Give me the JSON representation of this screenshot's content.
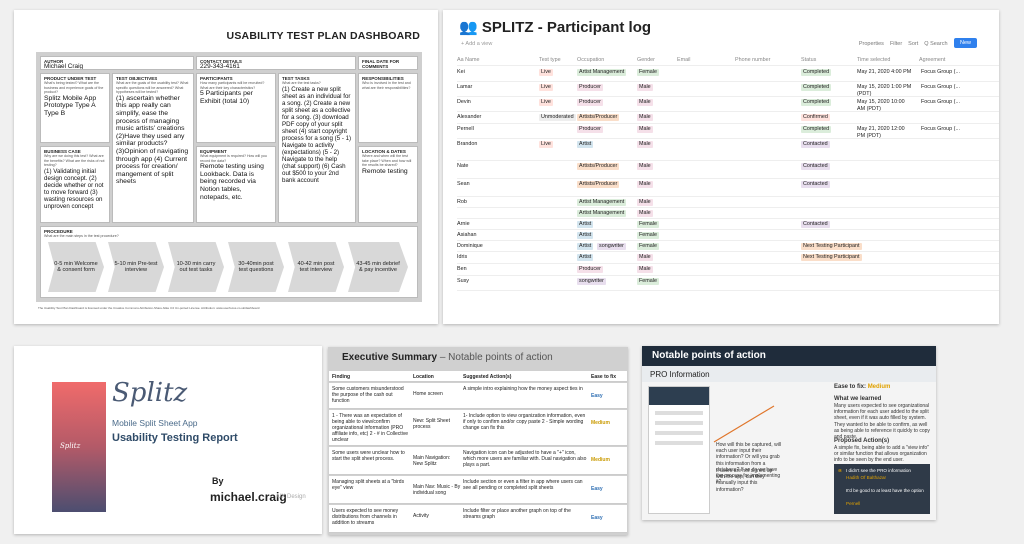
{
  "dashboard": {
    "title": "USABILITY TEST PLAN DASHBOARD",
    "author_label": "AUTHOR",
    "author": "Michael Craig",
    "contact_label": "CONTACT DETAILS",
    "contact": "229-343-4161",
    "final_label": "FINAL DATE FOR COMMENTS",
    "product": {
      "h": "PRODUCT UNDER TEST",
      "q": "What's being tested? What are the business and experience goals of the product?",
      "a": "Splitz Mobile App Prototype Type A Type B"
    },
    "objectives": {
      "h": "TEST OBJECTIVES",
      "q": "What are the goals of the usability test? What specific questions will be answered? What hypotheses will be tested?",
      "a": "(1) ascertain whether this app really can simplify, ease the process of managing music artists' creations (2)Have they used any similar products? (3)Opinion of navigating through app (4) Current process for creation/ mangement of split sheets"
    },
    "participants": {
      "h": "PARTICIPANTS",
      "q": "How many participants will be recruited? What are their key characteristics?",
      "a": "5 Participants per Exhibit (total 10)"
    },
    "tasks": {
      "h": "TEST TASKS",
      "q": "What are the test tasks?",
      "a": "(1) Create a new split sheet as an individual for a song. (2) Create a new split sheet as a collective for a song. (3) download PDF copy of your split sheet (4) start copyright process for a song (5 - 1) Navigate to activity (expectations) (5 - 2) Navigate to the help (chat support) (6) Cash out $500 to your 2nd bank account"
    },
    "responsibilities": {
      "h": "RESPONSIBILITIES",
      "q": "Who is involved in the test and what are their responsibilities?",
      "a": ""
    },
    "business": {
      "h": "BUSINESS CASE",
      "q": "Why are we doing this test? What are the benefits? What are the risks of not testing?",
      "a": "(1) Validating initial design concept. (2) decide whether or not to move forward (3) wasting resources on unproven concept"
    },
    "equipment": {
      "h": "EQUIPMENT",
      "q": "What equipment is required? How will you record the data?",
      "a": "Remote testing using Lookback. Data is being recorded via Notion tables, notepads, etc."
    },
    "location": {
      "h": "LOCATION & DATES",
      "q": "Where and when will the test take place? When and how will the results be shared?",
      "a": "Remote testing"
    },
    "procedure_label": "PROCEDURE",
    "procedure_q": "What are the main steps in the test procedure?",
    "steps": [
      "0-5 min Welcome & consent form",
      "5-10 min Pre-test interview",
      "10-30 min carry out test tasks",
      "30-40min post test questions",
      "40-42 min post test interview",
      "43-45 min debrief & pay incentive"
    ],
    "footer": "The Usability Test Plan Dashboard is licensed under the Creative Commons Attribution-Share Alike 3.0 Un-ported License. Attribution: www.userfocus.co.uk/dashboard"
  },
  "log": {
    "title": "SPLITZ - Participant log",
    "add_view": "+ Add a view",
    "tools": [
      "Properties",
      "Filter",
      "Sort",
      "Q Search",
      "···"
    ],
    "new": "New",
    "columns": [
      "Aa Name",
      "Test type",
      "Occupation",
      "Gender",
      "Email",
      "Phone number",
      "Status",
      "Time selected",
      "Agreement"
    ],
    "rows": [
      {
        "name": "Kei",
        "type": "Live",
        "occ": [
          "Artist Management"
        ],
        "gender": "Female",
        "status": "Completed",
        "time": "May 21, 2020 4:00 PM",
        "agree": "Focus Group (..."
      },
      {
        "name": "Lamar",
        "type": "Live",
        "occ": [
          "Producer"
        ],
        "gender": "Male",
        "status": "Completed",
        "time": "May 15, 2020 1:00 PM (PDT)",
        "agree": "Focus Group (..."
      },
      {
        "name": "Devin",
        "type": "Live",
        "occ": [
          "Producer"
        ],
        "gender": "Male",
        "status": "Completed",
        "time": "May 15, 2020 10:00 AM (PDT)",
        "agree": "Focus Group (..."
      },
      {
        "name": "Alexander",
        "type": "Unmoderated",
        "occ": [
          "Artists/Producer"
        ],
        "gender": "Male",
        "status": "Confirmed",
        "time": "",
        "agree": ""
      },
      {
        "name": "Pernell",
        "type": "",
        "occ": [
          "Producer"
        ],
        "gender": "Male",
        "status": "Completed",
        "time": "May 21, 2020 12:00 PM (PDT)",
        "agree": "Focus Group (..."
      },
      {
        "name": "Brandon",
        "type": "Live",
        "occ": [
          "Artist"
        ],
        "gender": "Male",
        "status": "Contacted",
        "time": "",
        "agree": ""
      },
      {
        "name": "Nate",
        "type": "",
        "occ": [
          "Artists/Producer"
        ],
        "gender": "Male",
        "status": "Contacted",
        "time": "",
        "agree": ""
      },
      {
        "name": "Sean",
        "type": "",
        "occ": [
          "Artists/Producer"
        ],
        "gender": "Male",
        "status": "Contacted",
        "time": "",
        "agree": ""
      },
      {
        "name": "Rob",
        "type": "",
        "occ": [
          "Artist Management"
        ],
        "gender": "Male",
        "status": "",
        "time": "",
        "agree": ""
      },
      {
        "name": "",
        "type": "",
        "occ": [
          "Artist Management"
        ],
        "gender": "Male",
        "status": "",
        "time": "",
        "agree": ""
      },
      {
        "name": "Arnie",
        "type": "",
        "occ": [
          "Artist"
        ],
        "gender": "Female",
        "status": "Contacted",
        "time": "",
        "agree": ""
      },
      {
        "name": "Asiahan",
        "type": "",
        "occ": [
          "Artist"
        ],
        "gender": "Female",
        "status": "",
        "time": "",
        "agree": ""
      },
      {
        "name": "Dominique",
        "type": "",
        "occ": [
          "Artist",
          "songwriter"
        ],
        "gender": "Female",
        "status": "Next Testing Participant",
        "time": "",
        "agree": ""
      },
      {
        "name": "Idris",
        "type": "",
        "occ": [
          "Artist"
        ],
        "gender": "Male",
        "status": "Next Testing Participant",
        "time": "",
        "agree": ""
      },
      {
        "name": "Ben",
        "type": "",
        "occ": [
          "Producer"
        ],
        "gender": "Male",
        "status": "",
        "time": "",
        "agree": ""
      },
      {
        "name": "Susy",
        "type": "",
        "occ": [
          "songwriter"
        ],
        "gender": "Female",
        "status": "",
        "time": "",
        "agree": ""
      }
    ]
  },
  "report": {
    "logo": "Splitz",
    "bar_logo": "Splitz",
    "subtitle": "Mobile Split Sheet App",
    "title": "Usability Testing Report",
    "by": "By",
    "author": "michael.craig",
    "role": "UX Design"
  },
  "exec": {
    "title": "Executive Summary",
    "subtitle": "– Notable points of action",
    "cols": [
      "Finding",
      "Location",
      "Suggested Action(s)",
      "Ease to fix"
    ],
    "rows": [
      {
        "f": "Some customers misunderstood the purpose of the cash out function",
        "l": "Home screen",
        "s": "A simple intro explaining how the money aspect ties in",
        "e": "Easy"
      },
      {
        "f": "1 - There was an expectation of being able to view/confirm organizational information (PRO affiliate info, etc) 2 - # in Collective unclear",
        "l": "New: Split Sheet process",
        "s": "1- Include option to view organization information, even if only to confirm and/or copy paste 2 - Simple wording change can fix this",
        "e": "Medium"
      },
      {
        "f": "Some users were unclear how to start the split sheet process.",
        "l": "Main Navigation: New Splitz",
        "s": "Navigation icon can be adjusted to have a \"+\" icon, which more users are familiar with. Dual navigation also plays a part.",
        "e": "Medium"
      },
      {
        "f": "Managing split sheets at a \"birds eye\" view",
        "l": "Main Nav: Music - By individual song",
        "s": "Include section or even a filter in app where users can see all pending or completed split sheets",
        "e": "Easy"
      },
      {
        "f": "Users expected to see money distributions from channels in addition to streams",
        "l": "Activity",
        "s": "Include filter or place another graph on top of the streams graph",
        "e": "Easy"
      }
    ]
  },
  "notable": {
    "title": "Notable points of action",
    "section": "PRO Information",
    "ease_label": "Ease to fix:",
    "ease": "Medium",
    "learned_h": "What we learned",
    "learned": "Many users expected to see organizational information for each user added to the split sheet, even if it was auto filled by system. They wanted to be able to confirm, as well as being able to reference it quickly to copy and paste.",
    "action_h": "Proposed Action(s)",
    "action": "A simple fix, being able to add a \"view info\" or similar function that allows organization info to be seen by the end user.",
    "q1": "How will this be captured, will each user input their information? Or will you grab this information from a database? If so do we have the process for implementing it?",
    "q2": "If users are not signed up with the app, can they manually input this information?",
    "quote1": "I didn't see the PRO information",
    "quote1_by": "Hadith Of Balthazar",
    "quote2": "It'd be good to at least have the option",
    "quote2_by": "Pernell",
    "accent": "#e0a100"
  }
}
